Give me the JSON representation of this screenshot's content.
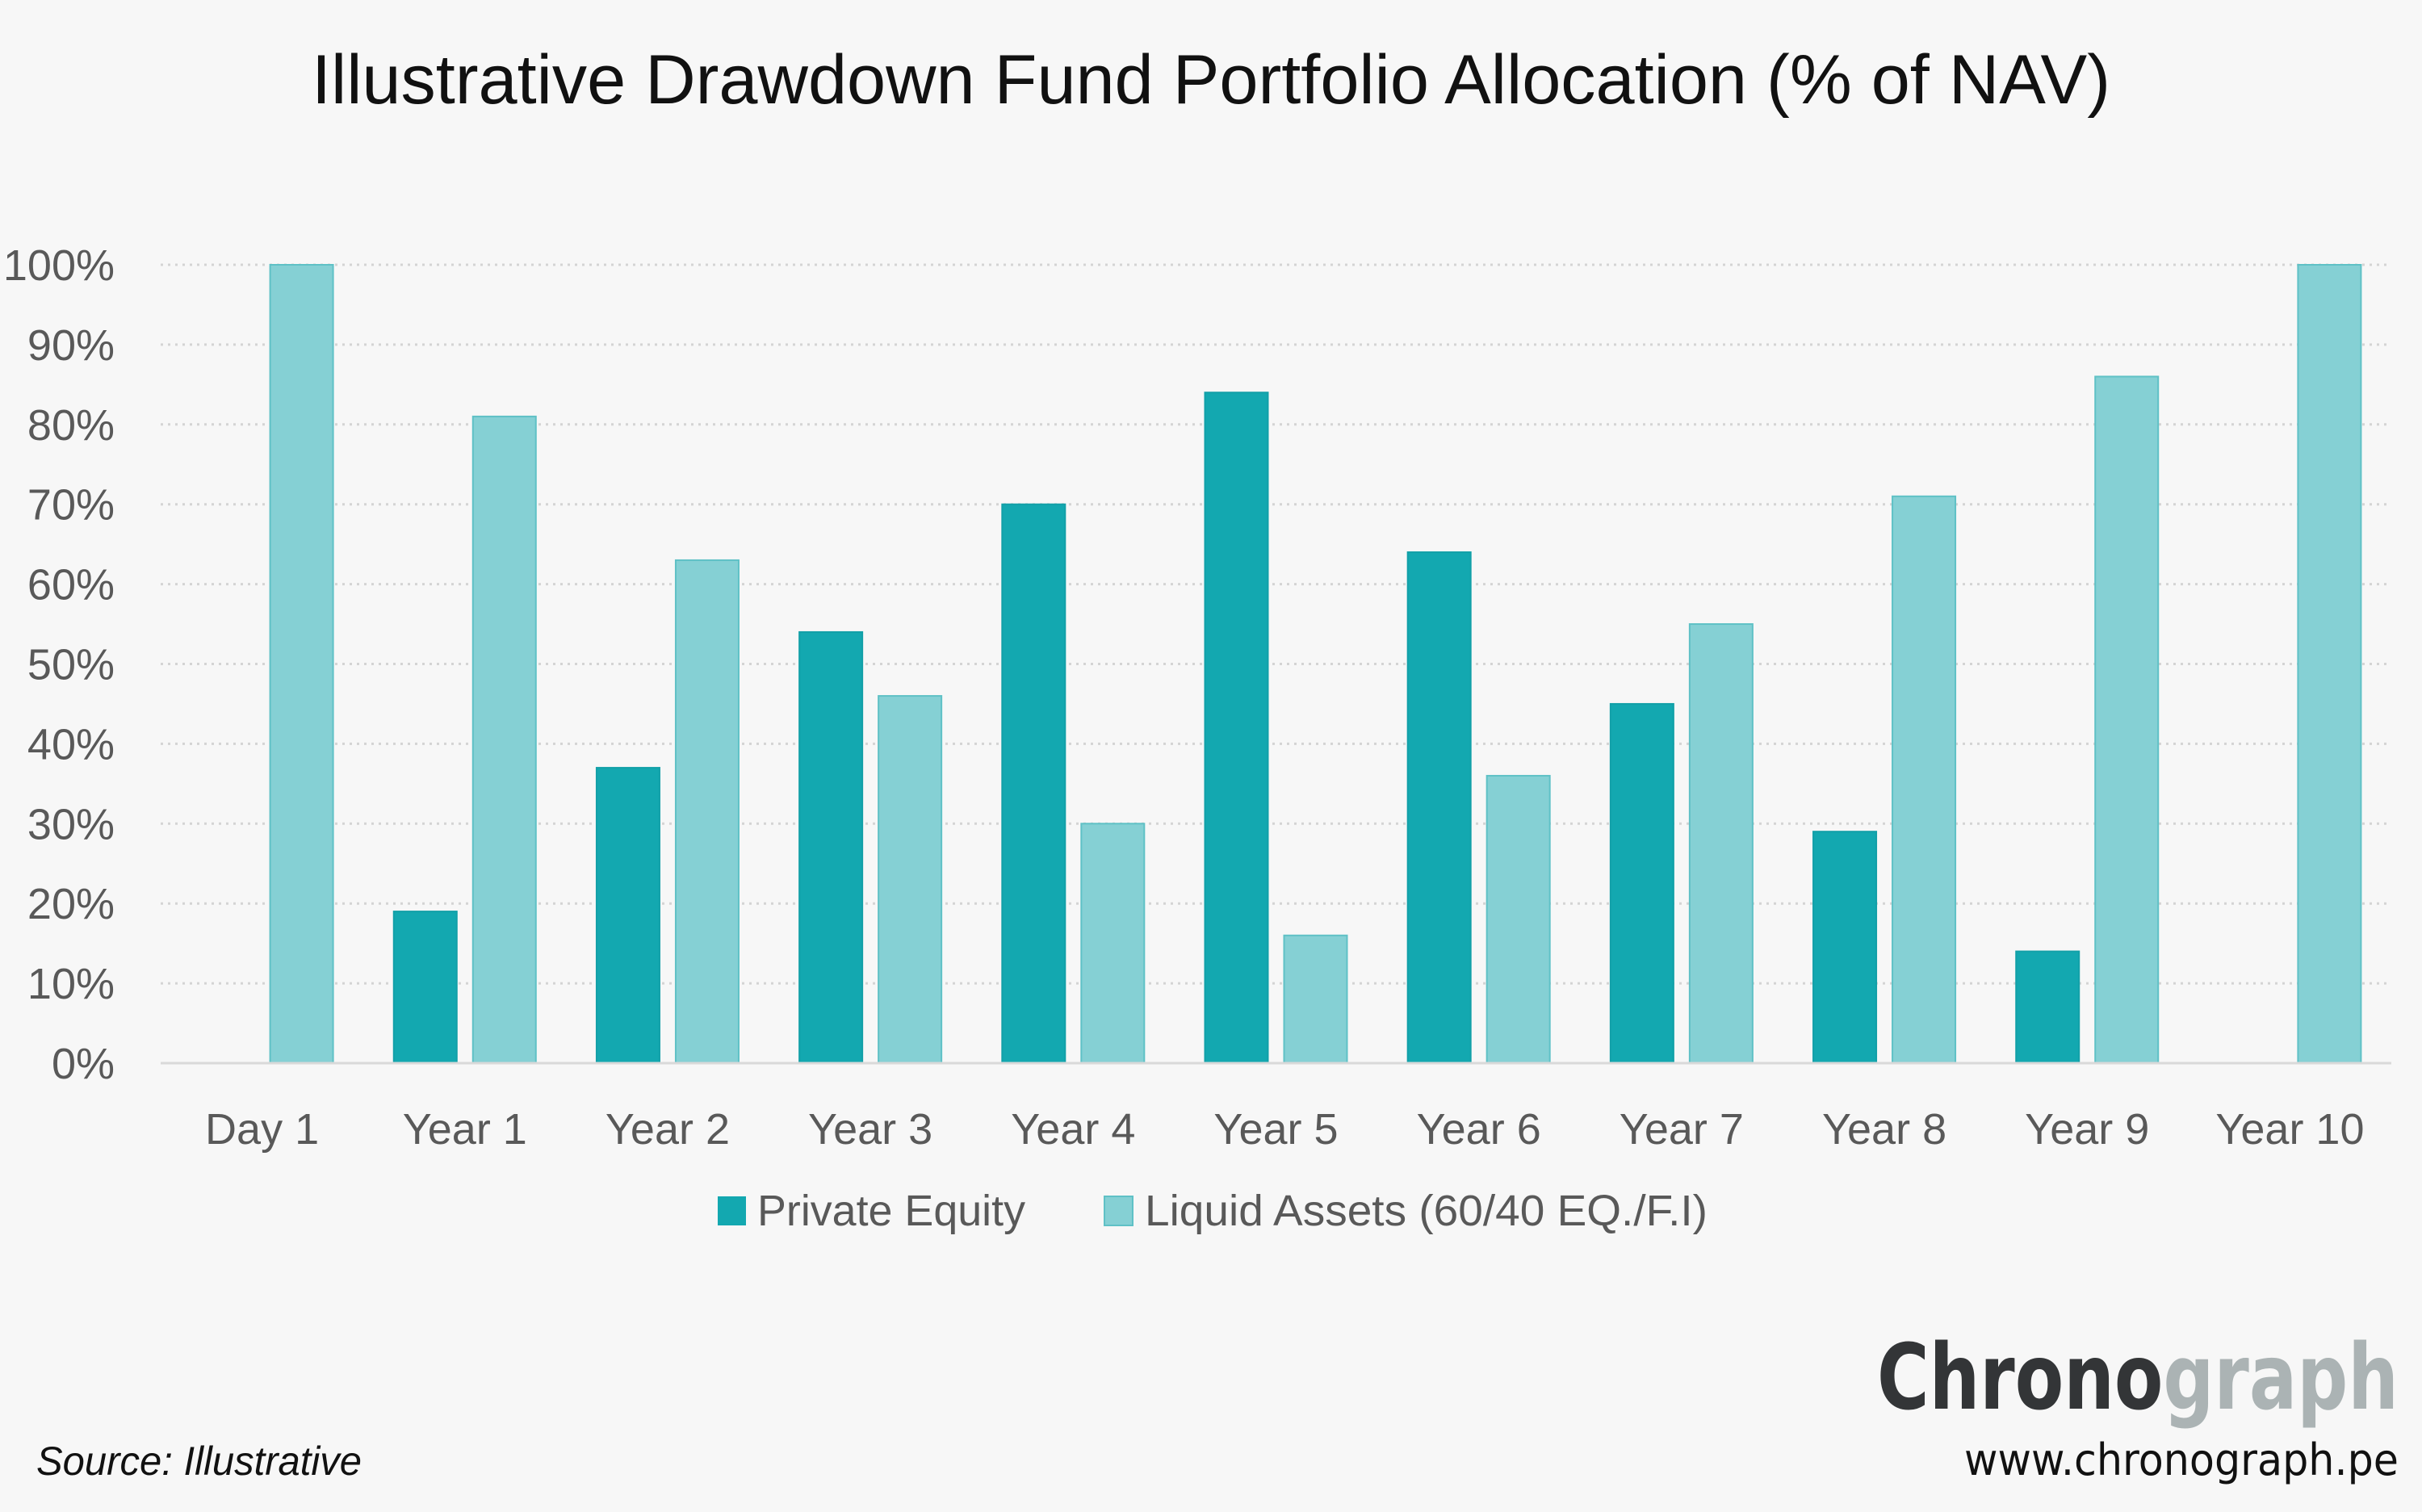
{
  "colors": {
    "background": "#f7f7f7",
    "private_equity": "#13a8b0",
    "private_equity_border": "#12a0a8",
    "liquid_assets": "#85d0d4",
    "liquid_assets_border": "#5fc1c6",
    "brand_dark": "#333537",
    "brand_light": "#abb3b4"
  },
  "chart_data": {
    "type": "bar",
    "title": "Illustrative Drawdown Fund Portfolio Allocation (% of NAV)",
    "xlabel": "",
    "ylabel": "",
    "categories": [
      "Day 1",
      "Year 1",
      "Year 2",
      "Year 3",
      "Year 4",
      "Year 5",
      "Year 6",
      "Year 7",
      "Year 8",
      "Year 9",
      "Year 10"
    ],
    "series": [
      {
        "name": "Private Equity",
        "values": [
          0,
          19,
          37,
          54,
          70,
          84,
          64,
          45,
          29,
          14,
          0
        ]
      },
      {
        "name": "Liquid Assets (60/40 EQ./F.I)",
        "values": [
          100,
          81,
          63,
          46,
          30,
          16,
          36,
          55,
          71,
          86,
          100
        ]
      }
    ],
    "ylim": [
      0,
      100
    ],
    "yticks": [
      0,
      10,
      20,
      30,
      40,
      50,
      60,
      70,
      80,
      90,
      100
    ],
    "ytick_labels": [
      "0%",
      "10%",
      "20%",
      "30%",
      "40%",
      "50%",
      "60%",
      "70%",
      "80%",
      "90%",
      "100%"
    ],
    "grid": true,
    "legend_position": "bottom-center"
  },
  "footer": {
    "source": "Source: Illustrative",
    "brand_part1": "Chrono",
    "brand_part2": "graph",
    "url": "www.chronograph.pe"
  }
}
